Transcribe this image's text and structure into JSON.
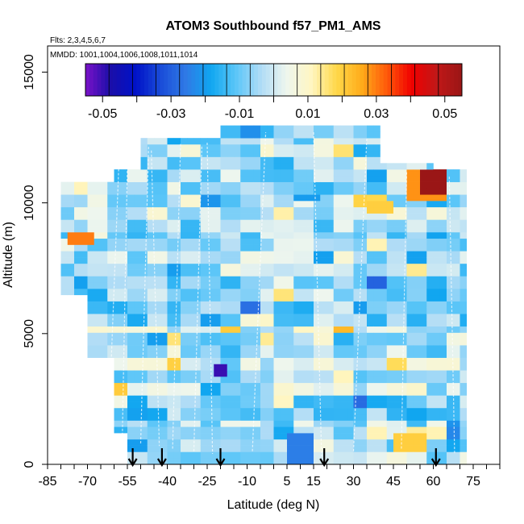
{
  "chart_data": {
    "type": "heatmap",
    "title": "ATOM3 Southbound f57_PM1_AMS",
    "subtitle_flights": "Flts: 2,3,4,5,6,7",
    "subtitle_dates": "MMDD: 1001,1004,1006,1008,1011,1014",
    "xlabel": "Latitude (deg N)",
    "ylabel": "Altitude (m)",
    "xlim": [
      -85,
      85
    ],
    "ylim": [
      0,
      16000
    ],
    "x_ticks": [
      -85,
      -70,
      -55,
      -40,
      -25,
      -10,
      5,
      15,
      30,
      45,
      60,
      75
    ],
    "y_ticks": [
      0,
      5000,
      10000,
      15000
    ],
    "colorbar": {
      "range": [
        -0.055,
        0.055
      ],
      "tick_values": [
        -0.05,
        -0.03,
        -0.01,
        0.01,
        0.03,
        0.05
      ],
      "tick_labels": [
        "-0.05",
        "-0.03",
        "-0.01",
        "0.01",
        "0.03",
        "0.05"
      ],
      "colors": [
        "#7a12c8",
        "#1a0ea8",
        "#0012c8",
        "#1a4cd8",
        "#2f7ae6",
        "#10a6f0",
        "#5cc6f8",
        "#b0dcf6",
        "#eef6ee",
        "#fff6c2",
        "#ffd84a",
        "#ffac1a",
        "#ff5a0a",
        "#f00000",
        "#c01818",
        "#9a1616"
      ]
    },
    "profile_arrows_lat": [
      -53,
      -42,
      -20,
      19,
      61
    ],
    "lat_range_observed": [
      -85,
      72
    ],
    "alt_range_observed": [
      0,
      12900
    ],
    "value_range_observed": [
      -0.05,
      0.055
    ]
  }
}
